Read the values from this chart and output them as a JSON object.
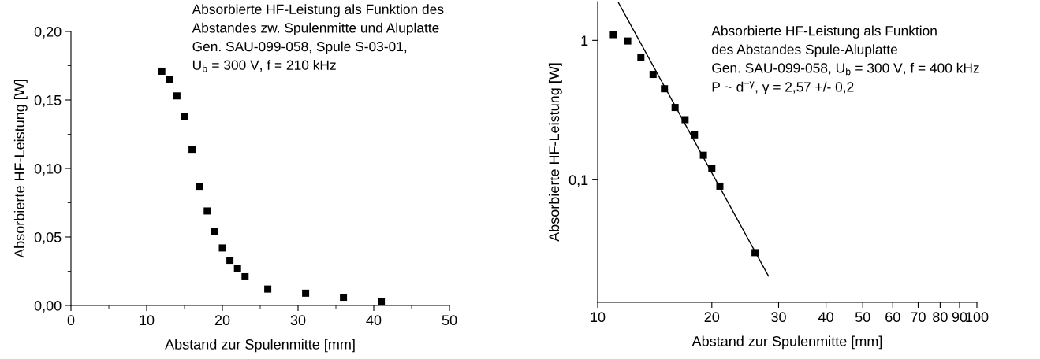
{
  "chart_data": [
    {
      "type": "scatter",
      "xlabel": "Abstand zur Spulenmitte [mm]",
      "ylabel": "Absorbierte HF-Leistung [W]",
      "annotations": [
        "Absorbierte HF-Leistung als Funktion des",
        "Abstandes zw. Spulenmitte und Aluplatte",
        "Gen. SAU-099-058, Spule S-03-01,",
        "U$_{b}$ = 300 V, f = 210 kHz"
      ],
      "marker": "square",
      "series": [
        {
          "color": "#000000",
          "x": [
            12,
            13,
            14,
            15,
            16,
            17,
            18,
            19,
            20,
            21,
            22,
            23,
            26,
            31,
            36,
            41
          ],
          "values": [
            0.171,
            0.165,
            0.153,
            0.138,
            0.114,
            0.087,
            0.069,
            0.054,
            0.042,
            0.033,
            0.027,
            0.021,
            0.012,
            0.009,
            0.006,
            0.003
          ]
        }
      ],
      "xlim": [
        0,
        50
      ],
      "xticks": [
        0,
        10,
        20,
        30,
        40,
        50
      ],
      "ylim": [
        0,
        0.2
      ],
      "yticks": [
        {
          "value": 0,
          "label": "0,00"
        },
        {
          "value": 0.05,
          "label": "0,05"
        },
        {
          "value": 0.1,
          "label": "0,10"
        },
        {
          "value": 0.15,
          "label": "0,15"
        },
        {
          "value": 0.2,
          "label": "0,20"
        }
      ]
    },
    {
      "type": "scatter",
      "xlabel": "Abstand zur Spulenmitte [mm]",
      "ylabel": "Absorbierte HF-Leistung [W]",
      "annotations": [
        "Absorbierte HF-Leistung als Funktion",
        "des Abstandes Spule-Aluplatte",
        "Gen. SAU-099-058, U$_{b}$ = 300 V, f = 400 kHz",
        "P ~ d$^{−γ}$, γ = 2,57 +/- 0,2"
      ],
      "marker": "square",
      "log": "xy",
      "series": [
        {
          "color": "#000000",
          "x": [
            11,
            12,
            13,
            14,
            15,
            16,
            17,
            18,
            19,
            20,
            21,
            26
          ],
          "values": [
            1.1,
            0.99,
            0.75,
            0.57,
            0.45,
            0.33,
            0.27,
            0.21,
            0.15,
            0.12,
            0.09,
            0.03
          ]
        },
        {
          "type": "line",
          "marker": "none",
          "color": "#000000",
          "x": [
            11.35,
            28.2
          ],
          "values": [
            1.86,
            0.0204
          ]
        }
      ],
      "xlim": [
        10,
        100
      ],
      "xticks": [
        10,
        20,
        30,
        40,
        50,
        60,
        70,
        80,
        90,
        100
      ],
      "ylim": [
        0.0132,
        1.9
      ],
      "yticks": [
        {
          "value": 0.1,
          "label": "0,1"
        },
        1
      ]
    }
  ]
}
